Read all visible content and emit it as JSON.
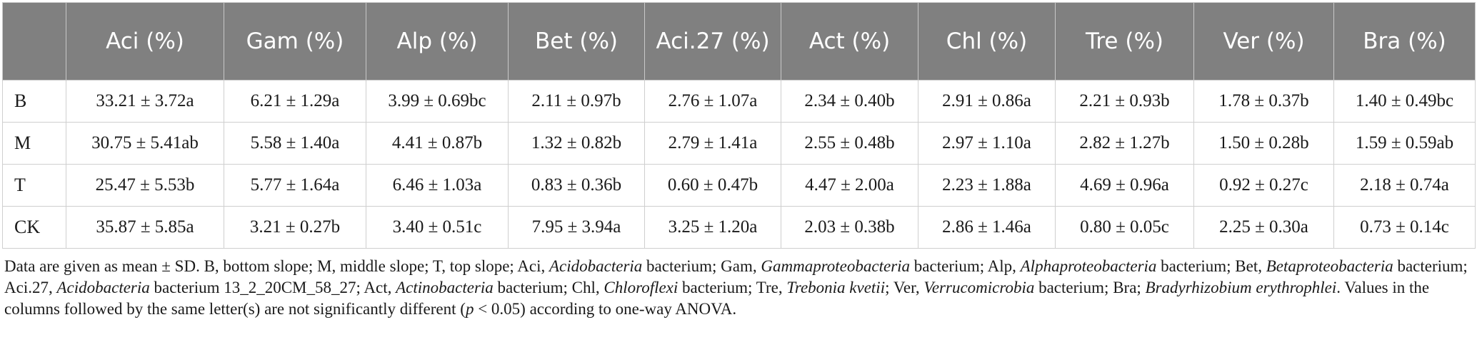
{
  "table": {
    "headers": [
      "",
      "Aci (%)",
      "Gam (%)",
      "Alp (%)",
      "Bet (%)",
      "Aci.27 (%)",
      "Act (%)",
      "Chl (%)",
      "Tre (%)",
      "Ver (%)",
      "Bra (%)"
    ],
    "rows": [
      {
        "label": "B",
        "cells": [
          "33.21 ± 3.72a",
          "6.21 ± 1.29a",
          "3.99 ± 0.69bc",
          "2.11 ± 0.97b",
          "2.76 ± 1.07a",
          "2.34 ± 0.40b",
          "2.91 ± 0.86a",
          "2.21 ± 0.93b",
          "1.78 ± 0.37b",
          "1.40 ± 0.49bc"
        ]
      },
      {
        "label": "M",
        "cells": [
          "30.75 ± 5.41ab",
          "5.58 ± 1.40a",
          "4.41 ± 0.87b",
          "1.32 ± 0.82b",
          "2.79 ± 1.41a",
          "2.55 ± 0.48b",
          "2.97 ± 1.10a",
          "2.82 ± 1.27b",
          "1.50 ± 0.28b",
          "1.59 ± 0.59ab"
        ]
      },
      {
        "label": "T",
        "cells": [
          "25.47 ± 5.53b",
          "5.77 ± 1.64a",
          "6.46 ± 1.03a",
          "0.83 ± 0.36b",
          "0.60 ± 0.47b",
          "4.47 ± 2.00a",
          "2.23 ± 1.88a",
          "4.69 ± 0.96a",
          "0.92 ± 0.27c",
          "2.18 ± 0.74a"
        ]
      },
      {
        "label": "CK",
        "cells": [
          "35.87 ± 5.85a",
          "3.21 ± 0.27b",
          "3.40 ± 0.51c",
          "7.95 ± 3.94a",
          "3.25 ± 1.20a",
          "2.03 ± 0.38b",
          "2.86 ± 1.46a",
          "0.80 ± 0.05c",
          "2.25 ± 0.30a",
          "0.73 ± 0.14c"
        ]
      }
    ]
  },
  "footnote": {
    "segments": [
      {
        "text": "Data are given as mean ± SD. B, bottom slope; M, middle slope; T, top slope; Aci, ",
        "italic": false
      },
      {
        "text": "Acidobacteria",
        "italic": true
      },
      {
        "text": " bacterium; Gam, ",
        "italic": false
      },
      {
        "text": "Gammaproteobacteria",
        "italic": true
      },
      {
        "text": " bacterium; Alp, ",
        "italic": false
      },
      {
        "text": "Alphaproteobacteria",
        "italic": true
      },
      {
        "text": " bacterium; Bet, ",
        "italic": false
      },
      {
        "text": "Betaproteobacteria",
        "italic": true
      },
      {
        "text": " bacterium; Aci.27, ",
        "italic": false
      },
      {
        "text": "Acidobacteria",
        "italic": true
      },
      {
        "text": " bacterium 13_2_20CM_58_27; Act, ",
        "italic": false
      },
      {
        "text": "Actinobacteria",
        "italic": true
      },
      {
        "text": " bacterium; Chl, ",
        "italic": false
      },
      {
        "text": "Chloroflexi",
        "italic": true
      },
      {
        "text": " bacterium; Tre, ",
        "italic": false
      },
      {
        "text": "Trebonia kvetii",
        "italic": true
      },
      {
        "text": "; Ver, ",
        "italic": false
      },
      {
        "text": "Verrucomicrobia",
        "italic": true
      },
      {
        "text": " bacterium; Bra; ",
        "italic": false
      },
      {
        "text": "Bradyrhizobium erythrophlei",
        "italic": true
      },
      {
        "text": ". Values in the columns followed by the same letter(s) are not significantly different (",
        "italic": false
      },
      {
        "text": "p",
        "italic": true
      },
      {
        "text": " < 0.05) according to one-way ANOVA.",
        "italic": false
      }
    ]
  }
}
